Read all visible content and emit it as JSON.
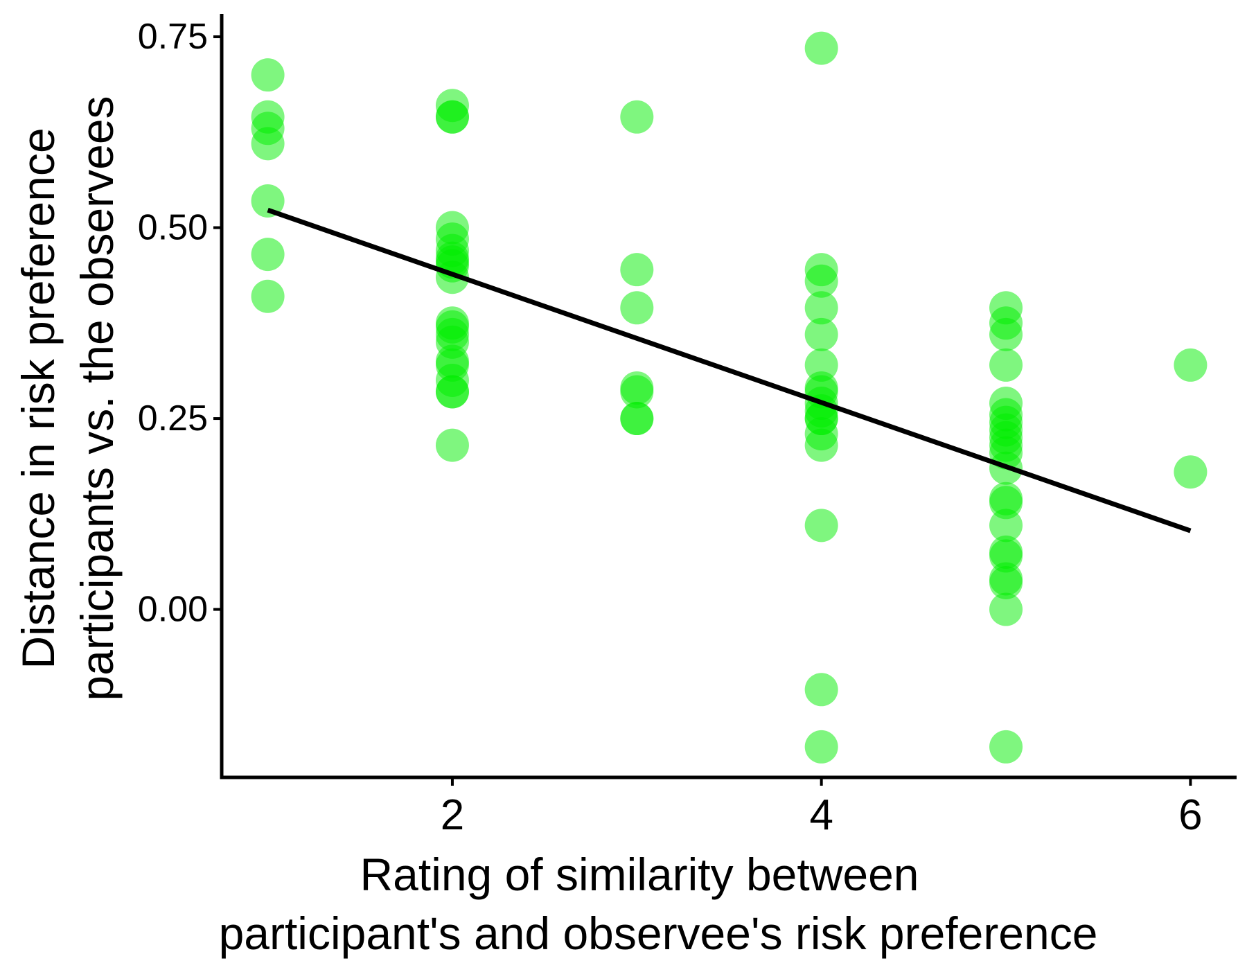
{
  "chart_data": {
    "type": "scatter",
    "title": "",
    "xlabel": [
      "Rating of similarity between",
      "participant's and observee's risk preference"
    ],
    "ylabel": [
      "Distance in risk preference",
      "participants vs. the observees"
    ],
    "xlim": [
      0.75,
      6.25
    ],
    "ylim": [
      -0.22,
      0.78
    ],
    "x_ticks": [
      2,
      4,
      6
    ],
    "x_tick_labels": [
      "2",
      "4",
      "6"
    ],
    "y_ticks": [
      0,
      0.25,
      0.5,
      0.75
    ],
    "y_tick_labels": [
      "0.00",
      "0.25",
      "0.50",
      "0.75"
    ],
    "grid": false,
    "point_color": "#00ee00",
    "point_opacity": 0.5,
    "line_color": "#000000",
    "series": [
      {
        "points": [
          [
            1,
            0.7
          ],
          [
            1,
            0.645
          ],
          [
            1,
            0.63
          ],
          [
            1,
            0.61
          ],
          [
            1,
            0.535
          ],
          [
            1,
            0.465
          ],
          [
            1,
            0.41
          ],
          [
            2,
            0.66
          ],
          [
            2,
            0.645
          ],
          [
            2,
            0.645
          ],
          [
            2,
            0.5
          ],
          [
            2,
            0.485
          ],
          [
            2,
            0.47
          ],
          [
            2,
            0.46
          ],
          [
            2,
            0.455
          ],
          [
            2,
            0.45
          ],
          [
            2,
            0.435
          ],
          [
            2,
            0.375
          ],
          [
            2,
            0.37
          ],
          [
            2,
            0.36
          ],
          [
            2,
            0.35
          ],
          [
            2,
            0.325
          ],
          [
            2,
            0.32
          ],
          [
            2,
            0.3
          ],
          [
            2,
            0.285
          ],
          [
            2,
            0.285
          ],
          [
            2,
            0.215
          ],
          [
            3,
            0.645
          ],
          [
            3,
            0.445
          ],
          [
            3,
            0.395
          ],
          [
            3,
            0.29
          ],
          [
            3,
            0.285
          ],
          [
            3,
            0.25
          ],
          [
            3,
            0.25
          ],
          [
            4,
            0.735
          ],
          [
            4,
            0.445
          ],
          [
            4,
            0.43
          ],
          [
            4,
            0.395
          ],
          [
            4,
            0.36
          ],
          [
            4,
            0.32
          ],
          [
            4,
            0.29
          ],
          [
            4,
            0.285
          ],
          [
            4,
            0.27
          ],
          [
            4,
            0.26
          ],
          [
            4,
            0.25
          ],
          [
            4,
            0.25
          ],
          [
            4,
            0.23
          ],
          [
            4,
            0.215
          ],
          [
            4,
            0.11
          ],
          [
            4,
            -0.105
          ],
          [
            4,
            -0.18
          ],
          [
            5,
            0.395
          ],
          [
            5,
            0.375
          ],
          [
            5,
            0.36
          ],
          [
            5,
            0.32
          ],
          [
            5,
            0.27
          ],
          [
            5,
            0.255
          ],
          [
            5,
            0.245
          ],
          [
            5,
            0.235
          ],
          [
            5,
            0.225
          ],
          [
            5,
            0.215
          ],
          [
            5,
            0.205
          ],
          [
            5,
            0.185
          ],
          [
            5,
            0.145
          ],
          [
            5,
            0.14
          ],
          [
            5,
            0.11
          ],
          [
            5,
            0.075
          ],
          [
            5,
            0.07
          ],
          [
            5,
            0.04
          ],
          [
            5,
            0.035
          ],
          [
            5,
            0.0
          ],
          [
            5,
            -0.18
          ],
          [
            6,
            0.32
          ],
          [
            6,
            0.18
          ]
        ]
      }
    ],
    "fit_line": {
      "x": [
        1,
        6
      ],
      "y": [
        0.523,
        0.103
      ]
    }
  }
}
